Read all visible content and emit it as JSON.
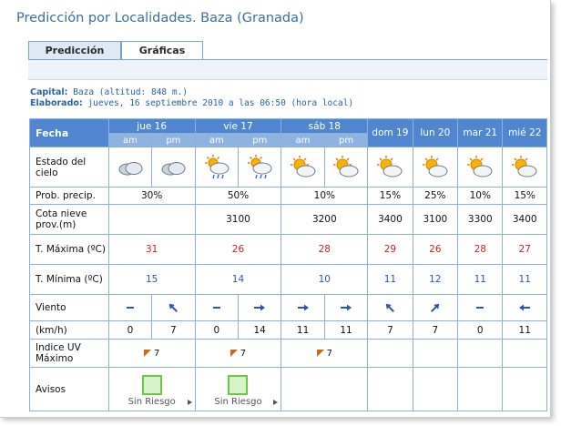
{
  "title": "Predicción por Localidades. Baza (Granada)",
  "tabs": [
    {
      "label": "Predicción",
      "active": true
    },
    {
      "label": "Gráficas",
      "active": false
    }
  ],
  "info": {
    "capital_label": "Capital:",
    "capital_value": "Baza (altitud: 848 m.)",
    "elaborado_label": "Elaborado:",
    "elaborado_value": "jueves, 16 septiembre 2010 a las 06:50 (hora local)"
  },
  "table": {
    "fecha_label": "Fecha",
    "days": [
      "jue 16",
      "vie 17",
      "sáb 18",
      "dom 19",
      "lun 20",
      "mar 21",
      "mié 22"
    ],
    "am": "am",
    "pm": "pm",
    "row_labels": {
      "cielo": "Estado del cielo",
      "precip": "Prob. precip.",
      "cota": "Cota nieve prov.(m)",
      "tmax": "T. Máxima (ºC)",
      "tmin": "T. Mínima (ºC)",
      "viento": "Viento",
      "kmh": "(km/h)",
      "uv": "Indice UV Máximo",
      "avisos": "Avisos"
    },
    "sky_icons": [
      "cloudy-icon",
      "cloudy-icon",
      "sun-cloud-rain-icon",
      "sun-cloud-rain-icon",
      "sun-cloud-icon",
      "sun-cloud-icon",
      "sun-cloud-icon",
      "sun-cloud-icon",
      "sun-cloud-icon",
      "sun-cloud-icon"
    ],
    "precip": [
      "30%",
      "50%",
      "10%",
      "15%",
      "25%",
      "10%",
      "15%"
    ],
    "cota": [
      "",
      "3100",
      "3200",
      "3400",
      "3100",
      "3300",
      "3400"
    ],
    "tmax": [
      "31",
      "26",
      "28",
      "29",
      "26",
      "28",
      "27"
    ],
    "tmin": [
      "15",
      "14",
      "10",
      "11",
      "12",
      "11",
      "11"
    ],
    "wind_dirs": [
      "calm",
      "NW",
      "calm",
      "E",
      "E",
      "E",
      "NW",
      "NE",
      "calm",
      "W"
    ],
    "wind_speeds": [
      "0",
      "7",
      "0",
      "14",
      "11",
      "11",
      "7",
      "7",
      "0",
      "11"
    ],
    "uv": [
      "7",
      "7",
      "7"
    ],
    "avisos": [
      "Sin Riesgo",
      "Sin Riesgo"
    ]
  },
  "colors": {
    "header_blue": "#4f86cf",
    "header_light": "#8fb3e0",
    "max_temp": "#cc2222",
    "min_temp": "#2a56b4",
    "aviso_green": "#6bc84a"
  }
}
